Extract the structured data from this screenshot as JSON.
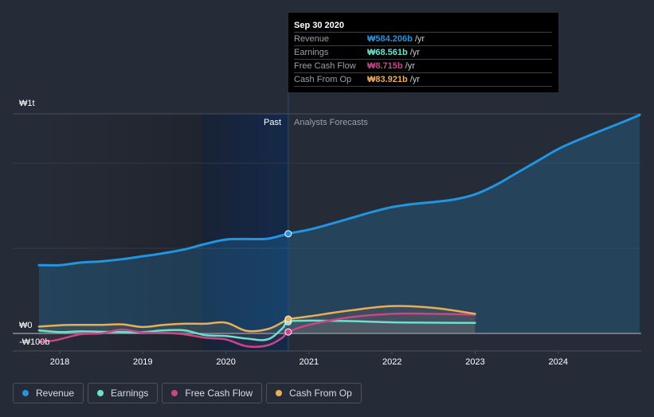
{
  "tooltip": {
    "date": "Sep 30 2020",
    "rows": [
      {
        "name": "Revenue",
        "value": "₩584.206b",
        "unit": "/yr",
        "color": "#2394df"
      },
      {
        "name": "Earnings",
        "value": "₩68.561b",
        "unit": "/yr",
        "color": "#6de0cb"
      },
      {
        "name": "Free Cash Flow",
        "value": "₩8.715b",
        "unit": "/yr",
        "color": "#c9468a"
      },
      {
        "name": "Cash From Op",
        "value": "₩83.921b",
        "unit": "/yr",
        "color": "#e9ae59"
      }
    ]
  },
  "legend": [
    {
      "label": "Revenue",
      "color": "#2394df"
    },
    {
      "label": "Earnings",
      "color": "#6de0cb"
    },
    {
      "label": "Free Cash Flow",
      "color": "#c9468a"
    },
    {
      "label": "Cash From Op",
      "color": "#e9ae59"
    }
  ],
  "chart_data": {
    "type": "line",
    "title": "",
    "xlabel": "",
    "ylabel": "",
    "currency": "KRW",
    "y_tick_labels": [
      "₩1t",
      "₩0",
      "-₩100b"
    ],
    "x_tick_labels": [
      "2018",
      "2019",
      "2020",
      "2021",
      "2022",
      "2023",
      "2024"
    ],
    "x_range": [
      2017.5,
      2025.0
    ],
    "ylim": [
      -100,
      1290
    ],
    "grid": true,
    "region_labels": {
      "past": "Past",
      "forecast": "Analysts Forecasts"
    },
    "highlight_date": 2020.75,
    "legend_position": "bottom-left",
    "series": [
      {
        "name": "Revenue",
        "color": "#2394df",
        "points": [
          [
            2017.75,
            400
          ],
          [
            2018.0,
            400
          ],
          [
            2018.25,
            415
          ],
          [
            2018.5,
            422
          ],
          [
            2018.75,
            435
          ],
          [
            2019.0,
            452
          ],
          [
            2019.25,
            470
          ],
          [
            2019.5,
            492
          ],
          [
            2019.75,
            524
          ],
          [
            2020.0,
            550
          ],
          [
            2020.25,
            553
          ],
          [
            2020.5,
            555
          ],
          [
            2020.75,
            584.2
          ],
          [
            2021.0,
            608
          ],
          [
            2021.25,
            640
          ],
          [
            2021.5,
            675
          ],
          [
            2021.75,
            710
          ],
          [
            2022.0,
            740
          ],
          [
            2022.25,
            758
          ],
          [
            2022.5,
            770
          ],
          [
            2022.75,
            785
          ],
          [
            2023.0,
            815
          ],
          [
            2023.25,
            870
          ],
          [
            2023.5,
            940
          ],
          [
            2023.75,
            1010
          ],
          [
            2024.0,
            1080
          ],
          [
            2024.25,
            1135
          ],
          [
            2024.5,
            1185
          ],
          [
            2024.75,
            1233
          ],
          [
            2024.98,
            1280
          ]
        ]
      },
      {
        "name": "Earnings",
        "color": "#6de0cb",
        "points": [
          [
            2017.75,
            18
          ],
          [
            2018.0,
            8
          ],
          [
            2018.25,
            12
          ],
          [
            2018.5,
            10
          ],
          [
            2018.75,
            8
          ],
          [
            2019.0,
            8
          ],
          [
            2019.25,
            18
          ],
          [
            2019.5,
            18
          ],
          [
            2019.75,
            -10
          ],
          [
            2020.0,
            -15
          ],
          [
            2020.25,
            -30
          ],
          [
            2020.5,
            -35
          ],
          [
            2020.68,
            30
          ],
          [
            2020.75,
            68.6
          ],
          [
            2021.0,
            75
          ],
          [
            2021.5,
            72
          ],
          [
            2022.0,
            65
          ],
          [
            2022.5,
            63
          ],
          [
            2023.0,
            62
          ]
        ]
      },
      {
        "name": "Free Cash Flow",
        "color": "#c9468a",
        "points": [
          [
            2017.75,
            -50
          ],
          [
            2017.95,
            -40
          ],
          [
            2018.25,
            -5
          ],
          [
            2018.5,
            0
          ],
          [
            2018.75,
            22
          ],
          [
            2019.0,
            5
          ],
          [
            2019.25,
            3
          ],
          [
            2019.5,
            -5
          ],
          [
            2019.75,
            -25
          ],
          [
            2020.0,
            -35
          ],
          [
            2020.25,
            -75
          ],
          [
            2020.5,
            -70
          ],
          [
            2020.68,
            -25
          ],
          [
            2020.75,
            8.7
          ],
          [
            2021.0,
            50
          ],
          [
            2021.5,
            95
          ],
          [
            2022.0,
            115
          ],
          [
            2022.5,
            115
          ],
          [
            2023.0,
            110
          ]
        ]
      },
      {
        "name": "Cash From Op",
        "color": "#e9ae59",
        "points": [
          [
            2017.75,
            40
          ],
          [
            2018.0,
            48
          ],
          [
            2018.25,
            50
          ],
          [
            2018.5,
            50
          ],
          [
            2018.75,
            53
          ],
          [
            2019.0,
            38
          ],
          [
            2019.25,
            50
          ],
          [
            2019.5,
            57
          ],
          [
            2019.75,
            57
          ],
          [
            2020.0,
            63
          ],
          [
            2020.25,
            15
          ],
          [
            2020.5,
            25
          ],
          [
            2020.68,
            65
          ],
          [
            2020.75,
            83.9
          ],
          [
            2021.0,
            100
          ],
          [
            2021.5,
            135
          ],
          [
            2022.0,
            160
          ],
          [
            2022.5,
            150
          ],
          [
            2023.0,
            115
          ]
        ]
      }
    ]
  }
}
